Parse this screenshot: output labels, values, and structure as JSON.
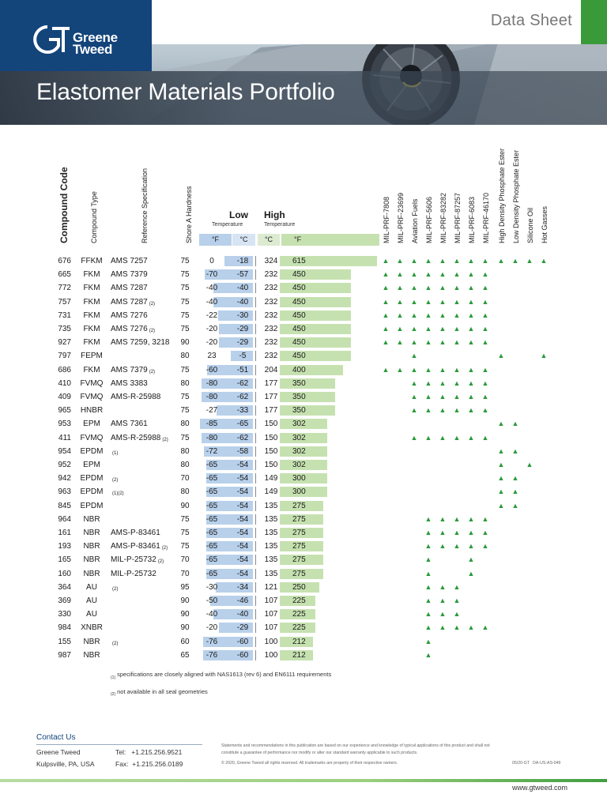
{
  "header": {
    "brand_line1": "Greene",
    "brand_line2": "Tweed",
    "doc_type": "Data Sheet",
    "title": "Elastomer Materials Portfolio"
  },
  "columns": {
    "compound_code": "Compound Code",
    "compound_type": "Compound Type",
    "reference_spec": "Reference Specification",
    "hardness": "Shore A Hardness",
    "low": "Low",
    "high": "High",
    "temperature": "Temperature",
    "unit_f": "°F",
    "unit_c": "°C",
    "compat": [
      "MIL-PRF-7808",
      "MIL-PRF-23699",
      "Aviation Fuels",
      "MIL-PRF-5606",
      "MIL-PRF-83282",
      "MIL-PRF-87257",
      "MIL-PRF-6083",
      "MIL-PRF-46170",
      "High Density Phosphate Ester",
      "Low Density Phosphate Ester",
      "Silicone Oil",
      "Hot Gasses"
    ]
  },
  "rows": [
    {
      "code": "676",
      "type": "FFKM",
      "spec": "AMS 7257",
      "note": "",
      "hard": "75",
      "lowf": "0",
      "lowc": "-18",
      "highc": "324",
      "highf": "615",
      "marks": [
        0,
        1,
        2,
        3,
        4,
        5,
        6,
        7,
        8,
        9,
        10,
        11
      ]
    },
    {
      "code": "665",
      "type": "FKM",
      "spec": "AMS 7379",
      "note": "",
      "hard": "75",
      "lowf": "-70",
      "lowc": "-57",
      "highc": "232",
      "highf": "450",
      "marks": [
        0,
        1,
        2,
        3,
        4,
        5,
        6,
        7
      ]
    },
    {
      "code": "772",
      "type": "FKM",
      "spec": "AMS 7287",
      "note": "",
      "hard": "75",
      "lowf": "-40",
      "lowc": "-40",
      "highc": "232",
      "highf": "450",
      "marks": [
        0,
        1,
        2,
        3,
        4,
        5,
        6,
        7
      ]
    },
    {
      "code": "757",
      "type": "FKM",
      "spec": "AMS 7287",
      "note": "(2)",
      "hard": "75",
      "lowf": "-40",
      "lowc": "-40",
      "highc": "232",
      "highf": "450",
      "marks": [
        0,
        1,
        2,
        3,
        4,
        5,
        6,
        7
      ]
    },
    {
      "code": "731",
      "type": "FKM",
      "spec": "AMS 7276",
      "note": "",
      "hard": "75",
      "lowf": "-22",
      "lowc": "-30",
      "highc": "232",
      "highf": "450",
      "marks": [
        0,
        1,
        2,
        3,
        4,
        5,
        6,
        7
      ]
    },
    {
      "code": "735",
      "type": "FKM",
      "spec": "AMS 7276",
      "note": "(2)",
      "hard": "75",
      "lowf": "-20",
      "lowc": "-29",
      "highc": "232",
      "highf": "450",
      "marks": [
        0,
        1,
        2,
        3,
        4,
        5,
        6,
        7
      ]
    },
    {
      "code": "927",
      "type": "FKM",
      "spec": "AMS 7259, 3218",
      "note": "",
      "hard": "90",
      "lowf": "-20",
      "lowc": "-29",
      "highc": "232",
      "highf": "450",
      "marks": [
        0,
        1,
        2,
        3,
        4,
        5,
        6,
        7
      ]
    },
    {
      "code": "797",
      "type": "FEPM",
      "spec": "",
      "note": "",
      "hard": "80",
      "lowf": "23",
      "lowc": "-5",
      "highc": "232",
      "highf": "450",
      "marks": [
        2,
        8,
        11
      ]
    },
    {
      "code": "686",
      "type": "FKM",
      "spec": "AMS 7379",
      "note": "(2)",
      "hard": "75",
      "lowf": "-60",
      "lowc": "-51",
      "highc": "204",
      "highf": "400",
      "marks": [
        0,
        1,
        2,
        3,
        4,
        5,
        6,
        7
      ]
    },
    {
      "code": "410",
      "type": "FVMQ",
      "spec": "AMS 3383",
      "note": "",
      "hard": "80",
      "lowf": "-80",
      "lowc": "-62",
      "highc": "177",
      "highf": "350",
      "marks": [
        2,
        3,
        4,
        5,
        6,
        7
      ]
    },
    {
      "code": "409",
      "type": "FVMQ",
      "spec": "AMS-R-25988",
      "note": "",
      "hard": "75",
      "lowf": "-80",
      "lowc": "-62",
      "highc": "177",
      "highf": "350",
      "marks": [
        2,
        3,
        4,
        5,
        6,
        7
      ]
    },
    {
      "code": "965",
      "type": "HNBR",
      "spec": "",
      "note": "",
      "hard": "75",
      "lowf": "-27",
      "lowc": "-33",
      "highc": "177",
      "highf": "350",
      "marks": [
        2,
        3,
        4,
        5,
        6,
        7
      ]
    },
    {
      "code": "953",
      "type": "EPM",
      "spec": "AMS 7361",
      "note": "",
      "hard": "80",
      "lowf": "-85",
      "lowc": "-65",
      "highc": "150",
      "highf": "302",
      "marks": [
        8,
        9
      ]
    },
    {
      "code": "411",
      "type": "FVMQ",
      "spec": "AMS-R-25988",
      "note": "(2)",
      "hard": "75",
      "lowf": "-80",
      "lowc": "-62",
      "highc": "150",
      "highf": "302",
      "marks": [
        2,
        3,
        4,
        5,
        6,
        7
      ]
    },
    {
      "code": "954",
      "type": "EPDM",
      "spec": "",
      "note": "(1)",
      "hard": "80",
      "lowf": "-72",
      "lowc": "-58",
      "highc": "150",
      "highf": "302",
      "marks": [
        8,
        9
      ]
    },
    {
      "code": "952",
      "type": "EPM",
      "spec": "",
      "note": "",
      "hard": "80",
      "lowf": "-65",
      "lowc": "-54",
      "highc": "150",
      "highf": "302",
      "marks": [
        8,
        10
      ]
    },
    {
      "code": "942",
      "type": "EPDM",
      "spec": "",
      "note": "(2)",
      "hard": "70",
      "lowf": "-65",
      "lowc": "-54",
      "highc": "149",
      "highf": "300",
      "marks": [
        8,
        9
      ]
    },
    {
      "code": "963",
      "type": "EPDM",
      "spec": "",
      "note": "(1)(2)",
      "hard": "80",
      "lowf": "-65",
      "lowc": "-54",
      "highc": "149",
      "highf": "300",
      "marks": [
        8,
        9
      ]
    },
    {
      "code": "845",
      "type": "EPDM",
      "spec": "",
      "note": "",
      "hard": "90",
      "lowf": "-65",
      "lowc": "-54",
      "highc": "135",
      "highf": "275",
      "marks": [
        8,
        9
      ]
    },
    {
      "code": "964",
      "type": "NBR",
      "spec": "",
      "note": "",
      "hard": "75",
      "lowf": "-65",
      "lowc": "-54",
      "highc": "135",
      "highf": "275",
      "marks": [
        3,
        4,
        5,
        6,
        7
      ]
    },
    {
      "code": "161",
      "type": "NBR",
      "spec": "AMS-P-83461",
      "note": "",
      "hard": "75",
      "lowf": "-65",
      "lowc": "-54",
      "highc": "135",
      "highf": "275",
      "marks": [
        3,
        4,
        5,
        6,
        7
      ]
    },
    {
      "code": "193",
      "type": "NBR",
      "spec": "AMS-P-83461",
      "note": "(2)",
      "hard": "75",
      "lowf": "-65",
      "lowc": "-54",
      "highc": "135",
      "highf": "275",
      "marks": [
        3,
        4,
        5,
        6,
        7
      ]
    },
    {
      "code": "165",
      "type": "NBR",
      "spec": "MIL-P-25732",
      "note": "(2)",
      "hard": "70",
      "lowf": "-65",
      "lowc": "-54",
      "highc": "135",
      "highf": "275",
      "marks": [
        3,
        6
      ]
    },
    {
      "code": "160",
      "type": "NBR",
      "spec": "MIL-P-25732",
      "note": "",
      "hard": "70",
      "lowf": "-65",
      "lowc": "-54",
      "highc": "135",
      "highf": "275",
      "marks": [
        3,
        6
      ]
    },
    {
      "code": "364",
      "type": "AU",
      "spec": "",
      "note": "(2)",
      "hard": "95",
      "lowf": "-30",
      "lowc": "-34",
      "highc": "121",
      "highf": "250",
      "marks": [
        3,
        4,
        5
      ]
    },
    {
      "code": "369",
      "type": "AU",
      "spec": "",
      "note": "",
      "hard": "90",
      "lowf": "-50",
      "lowc": "-46",
      "highc": "107",
      "highf": "225",
      "marks": [
        3,
        4,
        5
      ]
    },
    {
      "code": "330",
      "type": "AU",
      "spec": "",
      "note": "",
      "hard": "90",
      "lowf": "-40",
      "lowc": "-40",
      "highc": "107",
      "highf": "225",
      "marks": [
        3,
        4,
        5
      ]
    },
    {
      "code": "984",
      "type": "XNBR",
      "spec": "",
      "note": "",
      "hard": "90",
      "lowf": "-20",
      "lowc": "-29",
      "highc": "107",
      "highf": "225",
      "marks": [
        3,
        4,
        5,
        6,
        7
      ]
    },
    {
      "code": "155",
      "type": "NBR",
      "spec": "",
      "note": "(2)",
      "hard": "60",
      "lowf": "-76",
      "lowc": "-60",
      "highc": "100",
      "highf": "212",
      "marks": [
        3
      ]
    },
    {
      "code": "987",
      "type": "NBR",
      "spec": "",
      "note": "",
      "hard": "65",
      "lowf": "-76",
      "lowc": "-60",
      "highc": "100",
      "highf": "212",
      "marks": [
        3
      ]
    }
  ],
  "notes": [
    {
      "mark": "(1)",
      "text": "specifications are closely aligned with NAS1613 (rev 6) and EN6111 requirements"
    },
    {
      "mark": "(2)",
      "text": "not available in all seal geometries"
    }
  ],
  "footer": {
    "contact_title": "Contact Us",
    "company": "Greene Tweed",
    "location": "Kulpsville, PA, USA",
    "tel": "Tel:   +1.215.256.9521",
    "fax": "Fax:  +1.215.256.0189",
    "disclaimer": "Statements and recommendations in this publication are based on our experience and knowledge of typical applications of this product and shall not constitute a guarantee of performance nor modify or alter our standard warranty applicable to such products.",
    "copyright": "© 2020, Greene Tweed all rights reserved. All trademarks are property of their respective owners.",
    "doc_number": "05/20-GT   DA-US-AS-049",
    "website": "www.gtweed.com"
  },
  "colors": {
    "brand_blue": "#13447a",
    "brand_green": "#3a9a3a",
    "low_bar": "#b8d0ea",
    "high_bar": "#c6e1b0",
    "triangle": "#2a9a3a"
  },
  "icons": {
    "compat_mark": "triangle-icon",
    "logo": "gt-logo-icon"
  }
}
